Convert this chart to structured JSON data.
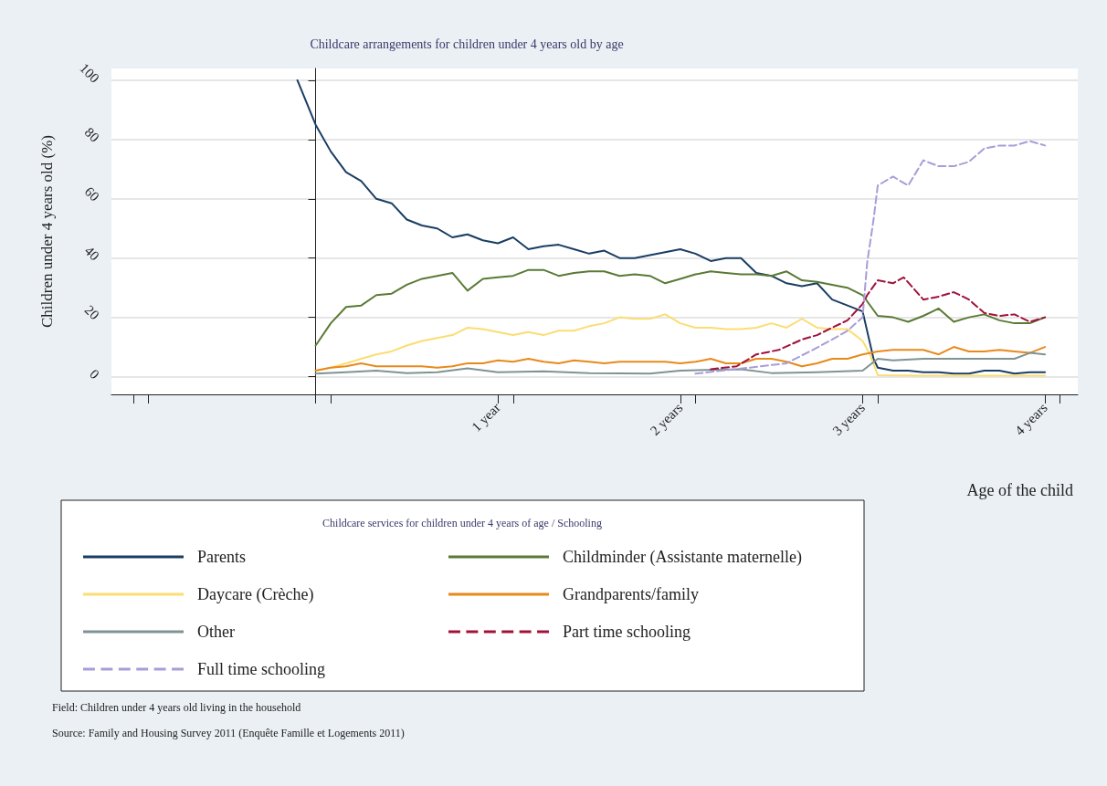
{
  "chart_data": {
    "type": "line",
    "title": "Childcare arrangements for children under 4 years old by age",
    "xlabel": "Age of the child",
    "ylabel": "Children under 4 years old (%)",
    "legend_title": "Childcare services for children under 4 years of age / Schooling",
    "legend": "bottom",
    "grid": "y",
    "marker": "none",
    "xlim": [
      -1.12,
      4.18
    ],
    "xticks": [
      {
        "value": -1,
        "label": null
      },
      {
        "value": -0.917,
        "label": null
      },
      {
        "value": 0,
        "label": null
      },
      {
        "value": 0.083,
        "label": null
      },
      {
        "value": 1,
        "label": "1 year"
      },
      {
        "value": 1.083,
        "label": null
      },
      {
        "value": 2,
        "label": "2 years"
      },
      {
        "value": 2.083,
        "label": null
      },
      {
        "value": 3,
        "label": "3 years"
      },
      {
        "value": 3.083,
        "label": null
      },
      {
        "value": 4,
        "label": "4 years"
      },
      {
        "value": 4.083,
        "label": null
      }
    ],
    "ylim": [
      -6,
      104
    ],
    "yticks": [
      0,
      20,
      40,
      60,
      80,
      100
    ],
    "series": [
      {
        "name": "Parents",
        "color": "#1a3e63",
        "line_style": "solid",
        "x": [
          -0.1,
          0,
          0.083,
          0.167,
          0.25,
          0.333,
          0.417,
          0.5,
          0.583,
          0.667,
          0.75,
          0.833,
          0.917,
          1,
          1.083,
          1.167,
          1.25,
          1.333,
          1.417,
          1.5,
          1.583,
          1.667,
          1.75,
          1.833,
          1.917,
          2,
          2.083,
          2.167,
          2.25,
          2.333,
          2.417,
          2.5,
          2.583,
          2.667,
          2.75,
          2.833,
          2.917,
          3,
          3.06,
          3.083,
          3.167,
          3.25,
          3.333,
          3.417,
          3.5,
          3.583,
          3.667,
          3.75,
          3.833,
          3.917,
          4
        ],
        "values": [
          100,
          85,
          76,
          69,
          66,
          60,
          58.5,
          53,
          51,
          50,
          47,
          48,
          46,
          45,
          47,
          43,
          44,
          44.5,
          43,
          41.5,
          42.5,
          40,
          40,
          41,
          42,
          43,
          41.5,
          39,
          40,
          40,
          35,
          34,
          31.5,
          30.5,
          31.5,
          26,
          24,
          22,
          6,
          3,
          2,
          2,
          1.5,
          1.5,
          1,
          1,
          2,
          2,
          1,
          1.5,
          1.5
        ]
      },
      {
        "name": "Childminder (Assistante maternelle)",
        "color": "#5a7a35",
        "line_style": "solid",
        "x": [
          0,
          0.083,
          0.167,
          0.25,
          0.333,
          0.417,
          0.5,
          0.583,
          0.667,
          0.75,
          0.833,
          0.917,
          1,
          1.083,
          1.167,
          1.25,
          1.333,
          1.417,
          1.5,
          1.583,
          1.667,
          1.75,
          1.833,
          1.917,
          2,
          2.083,
          2.167,
          2.25,
          2.333,
          2.417,
          2.5,
          2.583,
          2.667,
          2.75,
          2.833,
          2.917,
          3,
          3.083,
          3.167,
          3.25,
          3.333,
          3.417,
          3.5,
          3.583,
          3.667,
          3.75,
          3.833,
          3.917,
          4
        ],
        "values": [
          10.5,
          18,
          23.5,
          24,
          27.5,
          28,
          31,
          33,
          34,
          35,
          29,
          33,
          33.5,
          34,
          36,
          36,
          34,
          35,
          35.5,
          35.5,
          34,
          34.5,
          34,
          31.5,
          33,
          34.5,
          35.5,
          35,
          34.5,
          34.5,
          34,
          35.5,
          32.5,
          32,
          31,
          30,
          27.5,
          20.5,
          20,
          18.5,
          20.5,
          23,
          18.5,
          20,
          21,
          19,
          18,
          18,
          20
        ]
      },
      {
        "name": "Daycare (Crèche)",
        "color": "#fbdd73",
        "line_style": "solid",
        "x": [
          0,
          0.083,
          0.167,
          0.25,
          0.333,
          0.417,
          0.5,
          0.583,
          0.667,
          0.75,
          0.833,
          0.917,
          1,
          1.083,
          1.167,
          1.25,
          1.333,
          1.417,
          1.5,
          1.583,
          1.667,
          1.75,
          1.833,
          1.917,
          2,
          2.083,
          2.167,
          2.25,
          2.333,
          2.417,
          2.5,
          2.583,
          2.667,
          2.75,
          2.833,
          2.917,
          3,
          3.04,
          3.083,
          3.333,
          3.667,
          4
        ],
        "values": [
          2,
          3,
          4.5,
          6,
          7.5,
          8.5,
          10.5,
          12,
          13,
          14,
          16.5,
          16,
          15,
          14,
          15,
          14,
          15.5,
          15.5,
          17,
          18,
          20,
          19.5,
          19.5,
          21,
          18,
          16.5,
          16.5,
          16,
          16,
          16.5,
          18,
          16.5,
          19.5,
          16.5,
          16,
          16,
          12,
          7.5,
          0.5,
          0.3,
          0.3,
          0.3
        ]
      },
      {
        "name": "Grandparents/family",
        "color": "#e8891c",
        "line_style": "solid",
        "x": [
          0,
          0.083,
          0.167,
          0.25,
          0.333,
          0.417,
          0.5,
          0.583,
          0.667,
          0.75,
          0.833,
          0.917,
          1,
          1.083,
          1.167,
          1.25,
          1.333,
          1.417,
          1.5,
          1.583,
          1.667,
          1.75,
          1.833,
          1.917,
          2,
          2.083,
          2.167,
          2.25,
          2.333,
          2.417,
          2.5,
          2.583,
          2.667,
          2.75,
          2.833,
          2.917,
          3,
          3.083,
          3.167,
          3.25,
          3.333,
          3.417,
          3.5,
          3.583,
          3.667,
          3.75,
          3.833,
          3.917,
          4
        ],
        "values": [
          2,
          3,
          3.5,
          4.5,
          3.5,
          3.5,
          3.5,
          3.5,
          3,
          3.5,
          4.5,
          4.5,
          5.5,
          5,
          6,
          5,
          4.5,
          5.5,
          5,
          4.5,
          5,
          5,
          5,
          5,
          4.5,
          5,
          6,
          4.5,
          4.5,
          6,
          6,
          5,
          3.5,
          4.5,
          6,
          6,
          7.5,
          8.5,
          9,
          9,
          9,
          7.5,
          10,
          8.5,
          8.5,
          9,
          8.5,
          8,
          10
        ]
      },
      {
        "name": "Other",
        "color": "#7f9393",
        "line_style": "solid",
        "x": [
          0,
          0.167,
          0.333,
          0.5,
          0.667,
          0.833,
          1,
          1.25,
          1.5,
          1.833,
          2,
          2.333,
          2.5,
          2.75,
          3,
          3.083,
          3.167,
          3.333,
          3.5,
          3.667,
          3.833,
          3.917,
          4
        ],
        "values": [
          1,
          1.5,
          2,
          1.2,
          1.5,
          2.8,
          1.5,
          1.8,
          1.2,
          1,
          2,
          2.5,
          1.2,
          1.5,
          2,
          6,
          5.5,
          6,
          6,
          6,
          6,
          8,
          7.5
        ]
      },
      {
        "name": "Part time schooling",
        "color": "#a0123c",
        "line_style": "dashed",
        "x": [
          2.167,
          2.31,
          2.417,
          2.54,
          2.667,
          2.75,
          2.833,
          2.917,
          3,
          3.025,
          3.083,
          3.167,
          3.225,
          3.333,
          3.417,
          3.5,
          3.583,
          3.667,
          3.75,
          3.833,
          3.917,
          4
        ],
        "values": [
          2.5,
          3.5,
          7.5,
          9,
          12.5,
          14,
          16.5,
          19,
          24.5,
          27.5,
          32.5,
          31.5,
          33.5,
          26,
          27,
          28.5,
          26,
          21.5,
          20.5,
          21,
          18.5,
          20
        ]
      },
      {
        "name": "Full time schooling",
        "color": "#a99dd8",
        "line_style": "dashed",
        "x": [
          2.083,
          2.375,
          2.583,
          2.71,
          2.833,
          2.917,
          3,
          3.025,
          3.06,
          3.083,
          3.167,
          3.25,
          3.333,
          3.417,
          3.5,
          3.583,
          3.667,
          3.75,
          3.833,
          3.917,
          4
        ],
        "values": [
          1,
          3,
          4.5,
          8.5,
          12.5,
          15.5,
          20,
          38.5,
          53,
          64.5,
          67.5,
          64.5,
          73,
          71,
          71,
          72.5,
          77,
          78,
          78,
          79.5,
          78
        ]
      }
    ],
    "annotations": [
      "Field: Children under 4 years old living in the household",
      "Source: Family and Housing Survey 2011 (Enquête Famille et Logements 2011)"
    ]
  }
}
